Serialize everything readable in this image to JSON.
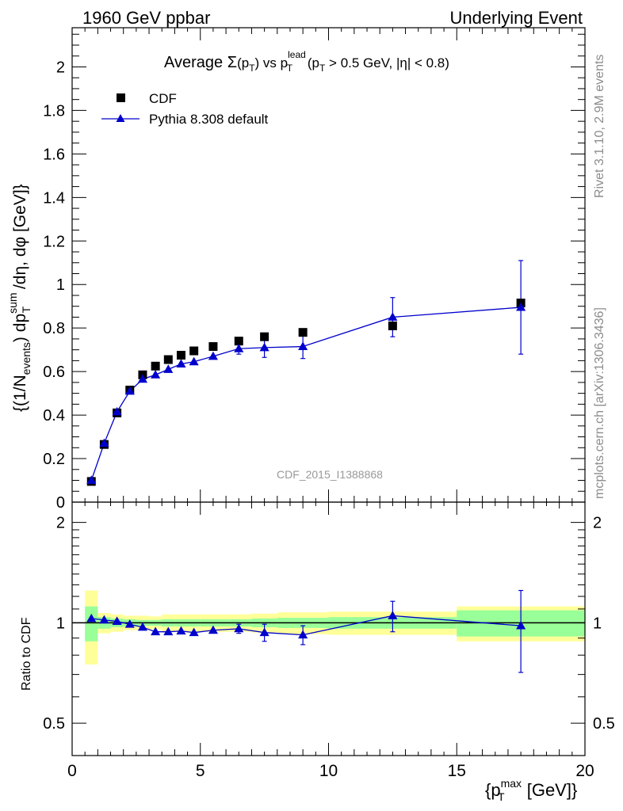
{
  "header": {
    "left": "1960 GeV ppbar",
    "right": "Underlying Event"
  },
  "side_labels": {
    "rivet": "Rivet 3.1.10,  2.9M events",
    "mcplots": "mcplots.cern.ch [arXiv:1306.3436]"
  },
  "watermark": "CDF_2015_I1388868",
  "title": {
    "prefix": "Average ",
    "sigma": "Σ",
    "paren_open": "(p",
    "sub_T": "T",
    "paren_close": ")",
    "vs": " vs p",
    "sup_lead": "lead",
    "sub_T2": "T",
    "cut_open": " (p",
    "sub_T3": "T",
    "cut_rest": " > 0.5 GeV, |η| < 0.8)"
  },
  "ylabel_main": {
    "a": "{(1/N",
    "sub_events": "events",
    "b": ") dp",
    "sup_sum": "sum",
    "sub_T": "T",
    "c": " /dη, dφ [GeV]}"
  },
  "ylabel_ratio": "Ratio to CDF",
  "xlabel": {
    "a": "{p",
    "sup_max": "max",
    "sub_T": "T",
    "b": " [GeV]}"
  },
  "legend": {
    "data": "CDF",
    "mc": "Pythia 8.308 default"
  },
  "colors": {
    "data": "#000000",
    "mc": "#0000cc",
    "band_inner": "#99ff99",
    "band_outer": "#ffff99"
  },
  "chart_data": {
    "type": "scatter",
    "x_range": [
      0,
      20
    ],
    "x_ticks": [
      0,
      5,
      10,
      15,
      20
    ],
    "main": {
      "ylim": [
        0,
        2.18
      ],
      "y_ticks": [
        0,
        0.2,
        0.4,
        0.6,
        0.8,
        1,
        1.2,
        1.4,
        1.6,
        1.8,
        2
      ],
      "y_tick_labels": [
        "0",
        "0.2",
        "0.4",
        "0.6",
        "0.8",
        "1",
        "1.2",
        "1.4",
        "1.6",
        "1.8",
        "2"
      ]
    },
    "ratio": {
      "scale": "log",
      "ylim": [
        0.4,
        2.3
      ],
      "y_ticks": [
        0.5,
        1,
        2
      ],
      "y_tick_labels": [
        "0.5",
        "1",
        "2"
      ]
    },
    "series": [
      {
        "name": "CDF",
        "x": [
          0.75,
          1.25,
          1.75,
          2.25,
          2.75,
          3.25,
          3.75,
          4.25,
          4.75,
          5.5,
          6.5,
          7.5,
          9.0,
          12.5,
          17.5
        ],
        "y": [
          0.095,
          0.265,
          0.41,
          0.515,
          0.585,
          0.625,
          0.655,
          0.675,
          0.695,
          0.715,
          0.74,
          0.76,
          0.78,
          0.81,
          0.915
        ],
        "bins": [
          [
            0.5,
            1.0
          ],
          [
            1.0,
            1.5
          ],
          [
            1.5,
            2.0
          ],
          [
            2.0,
            2.5
          ],
          [
            2.5,
            3.0
          ],
          [
            3.0,
            3.5
          ],
          [
            3.5,
            4.0
          ],
          [
            4.0,
            4.5
          ],
          [
            4.5,
            5.0
          ],
          [
            5.0,
            6.0
          ],
          [
            6.0,
            7.0
          ],
          [
            7.0,
            8.0
          ],
          [
            8.0,
            10.0
          ],
          [
            10.0,
            15.0
          ],
          [
            15.0,
            20.0
          ]
        ],
        "ratio_band_inner": [
          0.12,
          0.04,
          0.03,
          0.025,
          0.02,
          0.02,
          0.025,
          0.025,
          0.025,
          0.025,
          0.025,
          0.03,
          0.035,
          0.04,
          0.09
        ],
        "ratio_band_outer": [
          0.25,
          0.07,
          0.06,
          0.05,
          0.05,
          0.045,
          0.06,
          0.06,
          0.06,
          0.06,
          0.06,
          0.065,
          0.075,
          0.08,
          0.12
        ]
      },
      {
        "name": "Pythia 8.308 default",
        "x": [
          0.75,
          1.25,
          1.75,
          2.25,
          2.75,
          3.25,
          3.75,
          4.25,
          4.75,
          5.5,
          6.5,
          7.5,
          9.0,
          12.5,
          17.5
        ],
        "y": [
          0.1,
          0.27,
          0.415,
          0.51,
          0.565,
          0.585,
          0.61,
          0.635,
          0.645,
          0.67,
          0.705,
          0.71,
          0.715,
          0.85,
          0.895
        ],
        "yerr": [
          0.005,
          0.006,
          0.007,
          0.008,
          0.009,
          0.01,
          0.01,
          0.012,
          0.015,
          0.015,
          0.025,
          0.045,
          0.055,
          0.09,
          0.215
        ],
        "ratio": [
          1.03,
          1.02,
          1.01,
          0.99,
          0.97,
          0.94,
          0.94,
          0.945,
          0.935,
          0.95,
          0.96,
          0.935,
          0.92,
          1.05,
          0.98
        ],
        "ratio_err": [
          0.006,
          0.007,
          0.008,
          0.009,
          0.01,
          0.012,
          0.013,
          0.015,
          0.02,
          0.02,
          0.03,
          0.055,
          0.06,
          0.11,
          0.27
        ]
      }
    ]
  }
}
